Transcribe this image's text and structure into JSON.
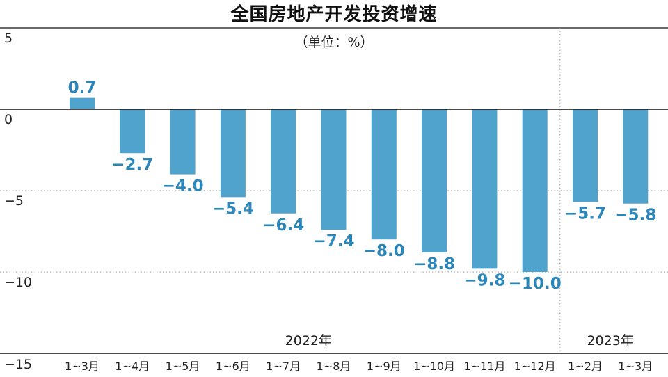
{
  "chart_data": {
    "type": "bar",
    "title": "全国房地产开发投资增速",
    "unit_label": "（单位：%）",
    "ylim": [
      -15,
      5
    ],
    "y_ticks": [
      "5",
      "0",
      "−5",
      "−10",
      "−15"
    ],
    "y_tick_values": [
      5,
      0,
      -5,
      -10,
      -15
    ],
    "categories": [
      "1~3月",
      "1~4月",
      "1~5月",
      "1~6月",
      "1~7月",
      "1~8月",
      "1~9月",
      "1~10月",
      "1~11月",
      "1~12月",
      "1~2月",
      "1~3月"
    ],
    "values": [
      0.7,
      -2.7,
      -4.0,
      -5.4,
      -6.4,
      -7.4,
      -8.0,
      -8.8,
      -9.8,
      -10.0,
      -5.7,
      -5.8
    ],
    "value_labels": [
      "0.7",
      "−2.7",
      "−4.0",
      "−5.4",
      "−6.4",
      "−7.4",
      "−8.0",
      "−8.8",
      "−9.8",
      "−10.0",
      "−5.7",
      "−5.8"
    ],
    "groups": [
      {
        "label": "2022年",
        "from": 0,
        "to": 9
      },
      {
        "label": "2023年",
        "from": 10,
        "to": 11
      }
    ],
    "grid": "dotted",
    "colors": {
      "bar": "#4fa3cc",
      "label": "#2b86b9",
      "axis": "#111111",
      "grid": "#999999"
    }
  }
}
